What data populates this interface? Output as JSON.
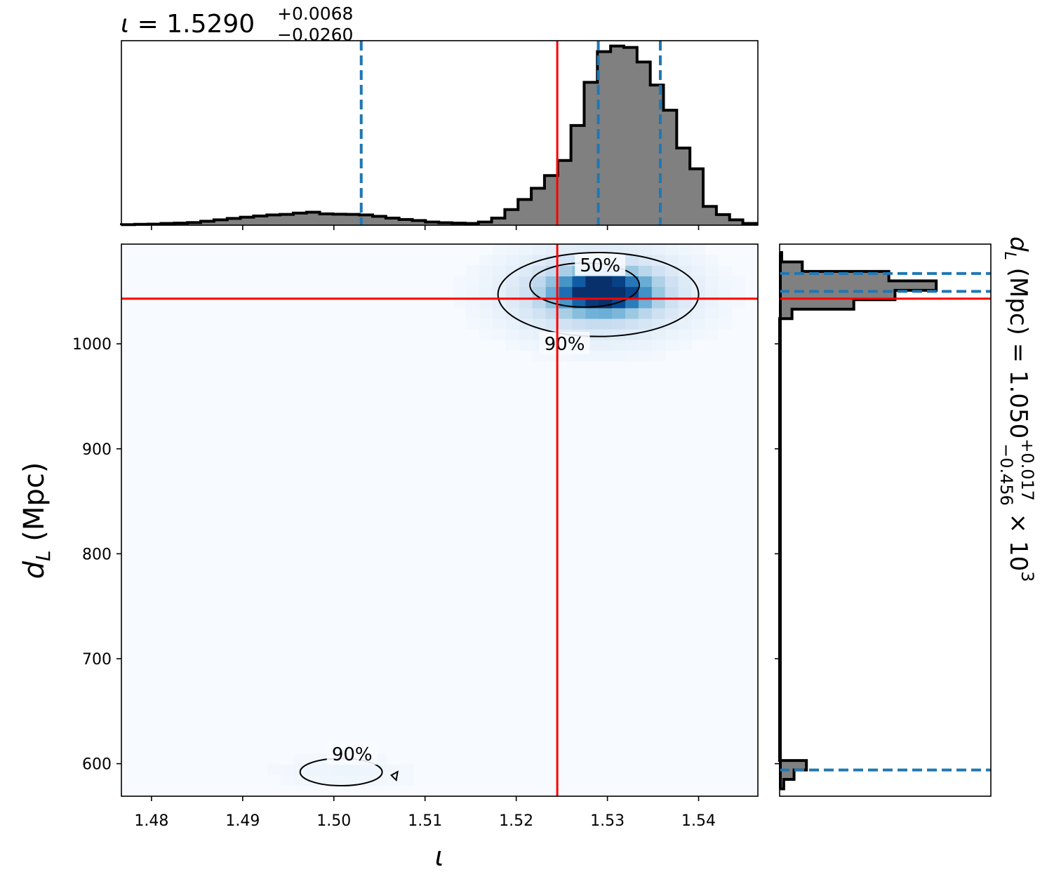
{
  "chart_data": [
    {
      "type": "histogram",
      "panel": "top-marginal",
      "title": {
        "symbol": "ι",
        "eq": " = 1.5290",
        "sup": "+0.0068",
        "sub": "−0.0260"
      },
      "xlim": [
        1.4767,
        1.5465
      ],
      "bin_start": 1.4767,
      "bin_width": 0.00145,
      "counts": [
        0.3,
        0.5,
        0.6,
        1.0,
        1.2,
        1.5,
        2.2,
        3.0,
        3.8,
        4.5,
        5.2,
        5.8,
        6.1,
        6.8,
        7.3,
        6.4,
        6.2,
        6.1,
        5.8,
        5.0,
        4.0,
        3.2,
        2.6,
        1.8,
        1.4,
        1.2,
        1.0,
        1.8,
        4.0,
        8.8,
        14.5,
        20.8,
        28.0,
        36.5,
        56.2,
        80.5,
        97.8,
        101.0,
        100.2,
        92.0,
        79.0,
        64.8,
        43.5,
        31.8,
        10.6,
        6.0,
        3.0,
        1.0
      ],
      "ylim": [
        0,
        104
      ],
      "quantiles": [
        1.503,
        1.529,
        1.5358
      ],
      "truth": 1.5245
    },
    {
      "type": "heatmap",
      "panel": "2d-density",
      "xlabel": "ι",
      "ylabel_symbol": "d",
      "ylabel_sub": "L",
      "ylabel_unit": " (Mpc)",
      "xlim": [
        1.4767,
        1.5465
      ],
      "ylim": [
        569,
        1095
      ],
      "xticks": [
        1.48,
        1.49,
        1.5,
        1.51,
        1.52,
        1.53,
        1.54
      ],
      "xtick_labels": [
        "1.48",
        "1.49",
        "1.50",
        "1.51",
        "1.52",
        "1.53",
        "1.54"
      ],
      "yticks": [
        600,
        700,
        800,
        900,
        1000
      ],
      "ytick_labels": [
        "600",
        "700",
        "800",
        "900",
        "1000"
      ],
      "truth": {
        "x": 1.5245,
        "y": 1043
      },
      "density_peaks": [
        {
          "x": 1.5295,
          "y": 1050,
          "sx": 0.0033,
          "sy": 12,
          "amp": 1.0
        },
        {
          "x": 1.529,
          "y": 1048,
          "sx": 0.0065,
          "sy": 28,
          "amp": 0.35
        },
        {
          "x": 1.501,
          "y": 592,
          "sx": 0.006,
          "sy": 12,
          "amp": 0.05
        }
      ],
      "contours": [
        {
          "label": "50%",
          "x": 1.5275,
          "y": 1056,
          "rx": 0.006,
          "ry": 21,
          "label_at": {
            "x": 1.5292,
            "y": 1075
          }
        },
        {
          "label": "90%",
          "x": 1.529,
          "y": 1047,
          "rx": 0.011,
          "ry": 40,
          "label_at": {
            "x": 1.5253,
            "y": 1000
          }
        },
        {
          "label": "90%",
          "x": 1.5008,
          "y": 592,
          "rx": 0.0045,
          "ry": 13,
          "label_at": {
            "x": 1.502,
            "y": 609
          }
        }
      ]
    },
    {
      "type": "histogram",
      "panel": "right-marginal",
      "orientation": "horizontal",
      "side_label": {
        "symbol": "d",
        "sub": "L",
        "eq": " (Mpc) = 1.050",
        "sup": "+0.017",
        "low": "−0.456",
        "tail": " × 10",
        "exp": "3"
      },
      "ylim": [
        569,
        1095
      ],
      "bin_edges": [
        576,
        585,
        594,
        603,
        1024,
        1033,
        1042,
        1051,
        1060,
        1069,
        1078,
        1087
      ],
      "counts": [
        4,
        14,
        26,
        0,
        12,
        72,
        112,
        152,
        106,
        22,
        2
      ],
      "xlim": [
        0,
        205
      ],
      "quantiles": [
        594,
        1050,
        1067
      ],
      "truth": 1043
    }
  ]
}
